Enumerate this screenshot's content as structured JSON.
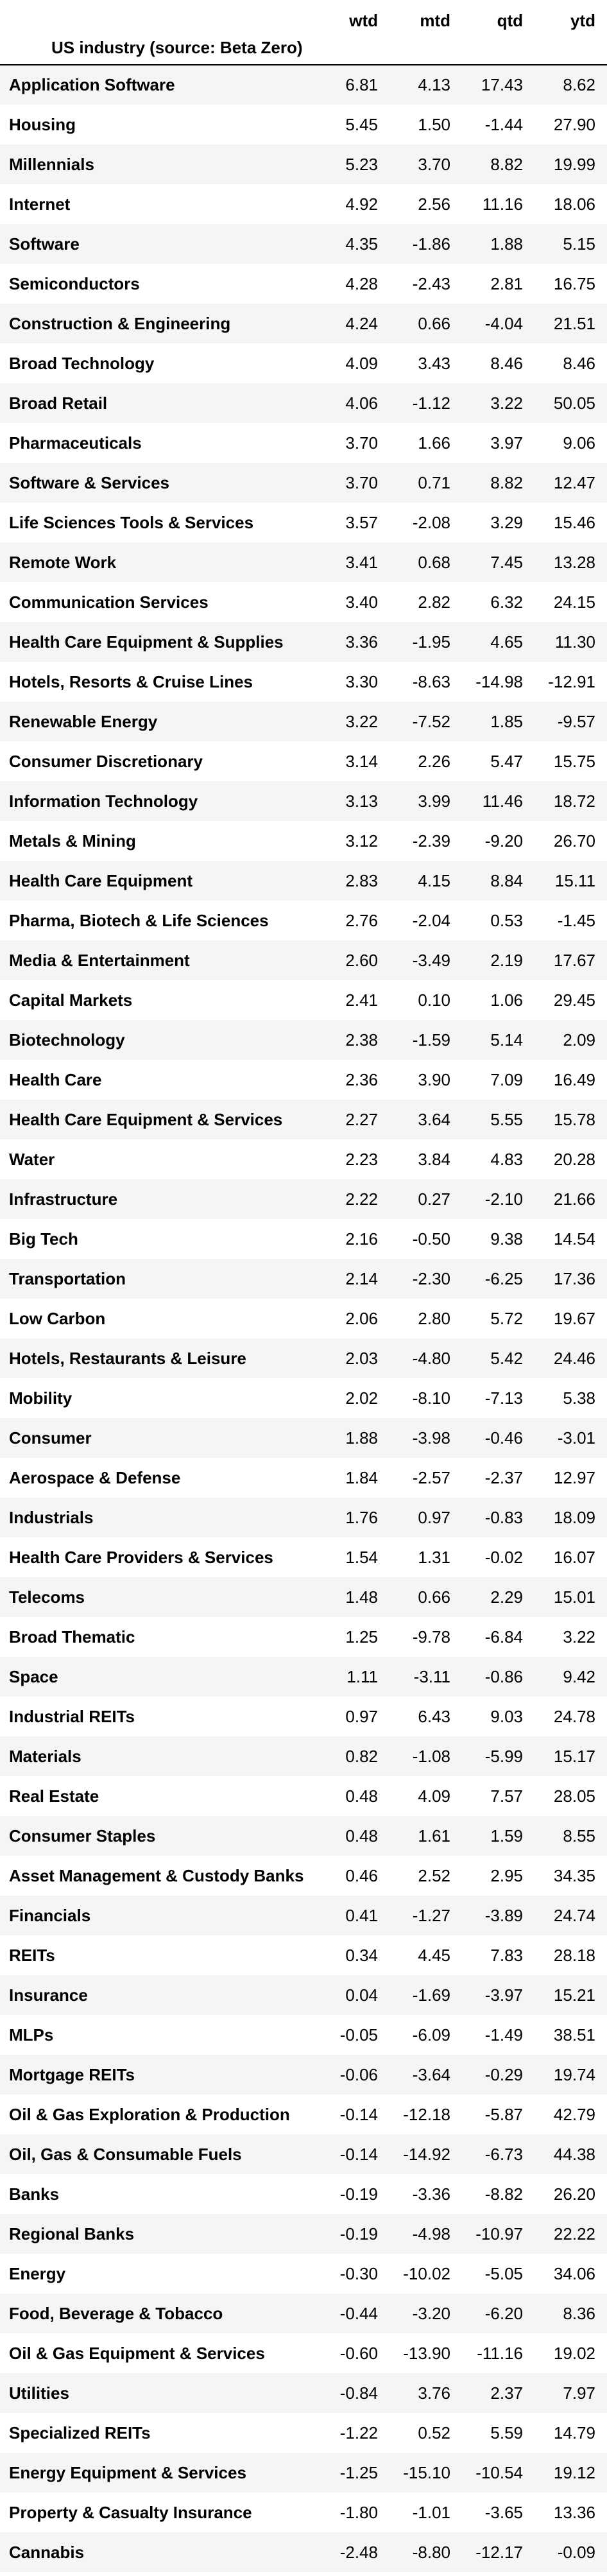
{
  "table": {
    "index_name": "US industry (source: Beta Zero)",
    "columns": [
      "wtd",
      "mtd",
      "qtd",
      "ytd"
    ],
    "rows": [
      {
        "name": "Application Software",
        "values": [
          "6.81",
          "4.13",
          "17.43",
          "8.62"
        ]
      },
      {
        "name": "Housing",
        "values": [
          "5.45",
          "1.50",
          "-1.44",
          "27.90"
        ]
      },
      {
        "name": "Millennials",
        "values": [
          "5.23",
          "3.70",
          "8.82",
          "19.99"
        ]
      },
      {
        "name": "Internet",
        "values": [
          "4.92",
          "2.56",
          "11.16",
          "18.06"
        ]
      },
      {
        "name": "Software",
        "values": [
          "4.35",
          "-1.86",
          "1.88",
          "5.15"
        ]
      },
      {
        "name": "Semiconductors",
        "values": [
          "4.28",
          "-2.43",
          "2.81",
          "16.75"
        ]
      },
      {
        "name": "Construction & Engineering",
        "values": [
          "4.24",
          "0.66",
          "-4.04",
          "21.51"
        ]
      },
      {
        "name": "Broad Technology",
        "values": [
          "4.09",
          "3.43",
          "8.46",
          "8.46"
        ]
      },
      {
        "name": "Broad Retail",
        "values": [
          "4.06",
          "-1.12",
          "3.22",
          "50.05"
        ]
      },
      {
        "name": "Pharmaceuticals",
        "values": [
          "3.70",
          "1.66",
          "3.97",
          "9.06"
        ]
      },
      {
        "name": "Software & Services",
        "values": [
          "3.70",
          "0.71",
          "8.82",
          "12.47"
        ]
      },
      {
        "name": "Life Sciences Tools & Services",
        "values": [
          "3.57",
          "-2.08",
          "3.29",
          "15.46"
        ]
      },
      {
        "name": "Remote Work",
        "values": [
          "3.41",
          "0.68",
          "7.45",
          "13.28"
        ]
      },
      {
        "name": "Communication Services",
        "values": [
          "3.40",
          "2.82",
          "6.32",
          "24.15"
        ]
      },
      {
        "name": "Health Care Equipment & Supplies",
        "values": [
          "3.36",
          "-1.95",
          "4.65",
          "11.30"
        ]
      },
      {
        "name": "Hotels, Resorts & Cruise Lines",
        "values": [
          "3.30",
          "-8.63",
          "-14.98",
          "-12.91"
        ]
      },
      {
        "name": "Renewable Energy",
        "values": [
          "3.22",
          "-7.52",
          "1.85",
          "-9.57"
        ]
      },
      {
        "name": "Consumer Discretionary",
        "values": [
          "3.14",
          "2.26",
          "5.47",
          "15.75"
        ]
      },
      {
        "name": "Information Technology",
        "values": [
          "3.13",
          "3.99",
          "11.46",
          "18.72"
        ]
      },
      {
        "name": "Metals & Mining",
        "values": [
          "3.12",
          "-2.39",
          "-9.20",
          "26.70"
        ]
      },
      {
        "name": "Health Care Equipment",
        "values": [
          "2.83",
          "4.15",
          "8.84",
          "15.11"
        ]
      },
      {
        "name": "Pharma, Biotech & Life Sciences",
        "values": [
          "2.76",
          "-2.04",
          "0.53",
          "-1.45"
        ]
      },
      {
        "name": "Media & Entertainment",
        "values": [
          "2.60",
          "-3.49",
          "2.19",
          "17.67"
        ]
      },
      {
        "name": "Capital Markets",
        "values": [
          "2.41",
          "0.10",
          "1.06",
          "29.45"
        ]
      },
      {
        "name": "Biotechnology",
        "values": [
          "2.38",
          "-1.59",
          "5.14",
          "2.09"
        ]
      },
      {
        "name": "Health Care",
        "values": [
          "2.36",
          "3.90",
          "7.09",
          "16.49"
        ]
      },
      {
        "name": "Health Care Equipment & Services",
        "values": [
          "2.27",
          "3.64",
          "5.55",
          "15.78"
        ]
      },
      {
        "name": "Water",
        "values": [
          "2.23",
          "3.84",
          "4.83",
          "20.28"
        ]
      },
      {
        "name": "Infrastructure",
        "values": [
          "2.22",
          "0.27",
          "-2.10",
          "21.66"
        ]
      },
      {
        "name": "Big Tech",
        "values": [
          "2.16",
          "-0.50",
          "9.38",
          "14.54"
        ]
      },
      {
        "name": "Transportation",
        "values": [
          "2.14",
          "-2.30",
          "-6.25",
          "17.36"
        ]
      },
      {
        "name": "Low Carbon",
        "values": [
          "2.06",
          "2.80",
          "5.72",
          "19.67"
        ]
      },
      {
        "name": "Hotels, Restaurants & Leisure",
        "values": [
          "2.03",
          "-4.80",
          "5.42",
          "24.46"
        ]
      },
      {
        "name": "Mobility",
        "values": [
          "2.02",
          "-8.10",
          "-7.13",
          "5.38"
        ]
      },
      {
        "name": "Consumer",
        "values": [
          "1.88",
          "-3.98",
          "-0.46",
          "-3.01"
        ]
      },
      {
        "name": "Aerospace & Defense",
        "values": [
          "1.84",
          "-2.57",
          "-2.37",
          "12.97"
        ]
      },
      {
        "name": "Industrials",
        "values": [
          "1.76",
          "0.97",
          "-0.83",
          "18.09"
        ]
      },
      {
        "name": "Health Care Providers & Services",
        "values": [
          "1.54",
          "1.31",
          "-0.02",
          "16.07"
        ]
      },
      {
        "name": "Telecoms",
        "values": [
          "1.48",
          "0.66",
          "2.29",
          "15.01"
        ]
      },
      {
        "name": "Broad Thematic",
        "values": [
          "1.25",
          "-9.78",
          "-6.84",
          "3.22"
        ]
      },
      {
        "name": "Space",
        "values": [
          "1.11",
          "-3.11",
          "-0.86",
          "9.42"
        ]
      },
      {
        "name": "Industrial REITs",
        "values": [
          "0.97",
          "6.43",
          "9.03",
          "24.78"
        ]
      },
      {
        "name": "Materials",
        "values": [
          "0.82",
          "-1.08",
          "-5.99",
          "15.17"
        ]
      },
      {
        "name": "Real Estate",
        "values": [
          "0.48",
          "4.09",
          "7.57",
          "28.05"
        ]
      },
      {
        "name": "Consumer Staples",
        "values": [
          "0.48",
          "1.61",
          "1.59",
          "8.55"
        ]
      },
      {
        "name": "Asset Management & Custody Banks",
        "values": [
          "0.46",
          "2.52",
          "2.95",
          "34.35"
        ]
      },
      {
        "name": "Financials",
        "values": [
          "0.41",
          "-1.27",
          "-3.89",
          "24.74"
        ]
      },
      {
        "name": "REITs",
        "values": [
          "0.34",
          "4.45",
          "7.83",
          "28.18"
        ]
      },
      {
        "name": "Insurance",
        "values": [
          "0.04",
          "-1.69",
          "-3.97",
          "15.21"
        ]
      },
      {
        "name": "MLPs",
        "values": [
          "-0.05",
          "-6.09",
          "-1.49",
          "38.51"
        ]
      },
      {
        "name": "Mortgage REITs",
        "values": [
          "-0.06",
          "-3.64",
          "-0.29",
          "19.74"
        ]
      },
      {
        "name": "Oil & Gas Exploration & Production",
        "values": [
          "-0.14",
          "-12.18",
          "-5.87",
          "42.79"
        ]
      },
      {
        "name": "Oil, Gas & Consumable Fuels",
        "values": [
          "-0.14",
          "-14.92",
          "-6.73",
          "44.38"
        ]
      },
      {
        "name": "Banks",
        "values": [
          "-0.19",
          "-3.36",
          "-8.82",
          "26.20"
        ]
      },
      {
        "name": "Regional Banks",
        "values": [
          "-0.19",
          "-4.98",
          "-10.97",
          "22.22"
        ]
      },
      {
        "name": "Energy",
        "values": [
          "-0.30",
          "-10.02",
          "-5.05",
          "34.06"
        ]
      },
      {
        "name": "Food, Beverage & Tobacco",
        "values": [
          "-0.44",
          "-3.20",
          "-6.20",
          "8.36"
        ]
      },
      {
        "name": "Oil & Gas Equipment & Services",
        "values": [
          "-0.60",
          "-13.90",
          "-11.16",
          "19.02"
        ]
      },
      {
        "name": "Utilities",
        "values": [
          "-0.84",
          "3.76",
          "2.37",
          "7.97"
        ]
      },
      {
        "name": "Specialized REITs",
        "values": [
          "-1.22",
          "0.52",
          "5.59",
          "14.79"
        ]
      },
      {
        "name": "Energy Equipment & Services",
        "values": [
          "-1.25",
          "-15.10",
          "-10.54",
          "19.12"
        ]
      },
      {
        "name": "Property & Casualty Insurance",
        "values": [
          "-1.80",
          "-1.01",
          "-3.65",
          "13.36"
        ]
      },
      {
        "name": "Cannabis",
        "values": [
          "-2.48",
          "-8.80",
          "-12.17",
          "-0.09"
        ]
      }
    ]
  }
}
